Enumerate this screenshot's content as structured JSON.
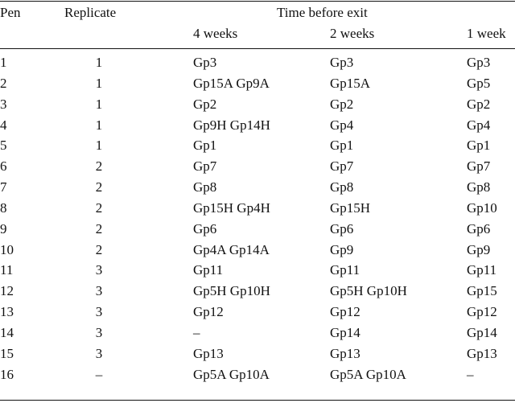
{
  "headers": {
    "pen": "Pen",
    "replicate": "Replicate",
    "time_group": "Time before exit",
    "weeks4": "4 weeks",
    "weeks2": "2 weeks",
    "weeks1": "1 week"
  },
  "rows": [
    {
      "pen": "1",
      "replicate": "1",
      "w4": "Gp3",
      "w2": "Gp3",
      "w1": "Gp3"
    },
    {
      "pen": "2",
      "replicate": "1",
      "w4": "Gp15A Gp9A",
      "w2": "Gp15A",
      "w1": "Gp5"
    },
    {
      "pen": "3",
      "replicate": "1",
      "w4": "Gp2",
      "w2": "Gp2",
      "w1": "Gp2"
    },
    {
      "pen": "4",
      "replicate": "1",
      "w4": "Gp9H Gp14H",
      "w2": "Gp4",
      "w1": "Gp4"
    },
    {
      "pen": "5",
      "replicate": "1",
      "w4": "Gp1",
      "w2": "Gp1",
      "w1": "Gp1"
    },
    {
      "pen": "6",
      "replicate": "2",
      "w4": "Gp7",
      "w2": "Gp7",
      "w1": "Gp7"
    },
    {
      "pen": "7",
      "replicate": "2",
      "w4": "Gp8",
      "w2": "Gp8",
      "w1": "Gp8"
    },
    {
      "pen": "8",
      "replicate": "2",
      "w4": "Gp15H Gp4H",
      "w2": "Gp15H",
      "w1": "Gp10"
    },
    {
      "pen": "9",
      "replicate": "2",
      "w4": "Gp6",
      "w2": "Gp6",
      "w1": "Gp6"
    },
    {
      "pen": "10",
      "replicate": "2",
      "w4": "Gp4A Gp14A",
      "w2": "Gp9",
      "w1": "Gp9"
    },
    {
      "pen": "11",
      "replicate": "3",
      "w4": "Gp11",
      "w2": "Gp11",
      "w1": "Gp11"
    },
    {
      "pen": "12",
      "replicate": "3",
      "w4": "Gp5H Gp10H",
      "w2": "Gp5H Gp10H",
      "w1": "Gp15"
    },
    {
      "pen": "13",
      "replicate": "3",
      "w4": "Gp12",
      "w2": "Gp12",
      "w1": "Gp12"
    },
    {
      "pen": "14",
      "replicate": "3",
      "w4": "–",
      "w2": "Gp14",
      "w1": "Gp14"
    },
    {
      "pen": "15",
      "replicate": "3",
      "w4": "Gp13",
      "w2": "Gp13",
      "w1": "Gp13"
    },
    {
      "pen": "16",
      "replicate": "–",
      "w4": "Gp5A Gp10A",
      "w2": "Gp5A Gp10A",
      "w1": "–"
    }
  ]
}
